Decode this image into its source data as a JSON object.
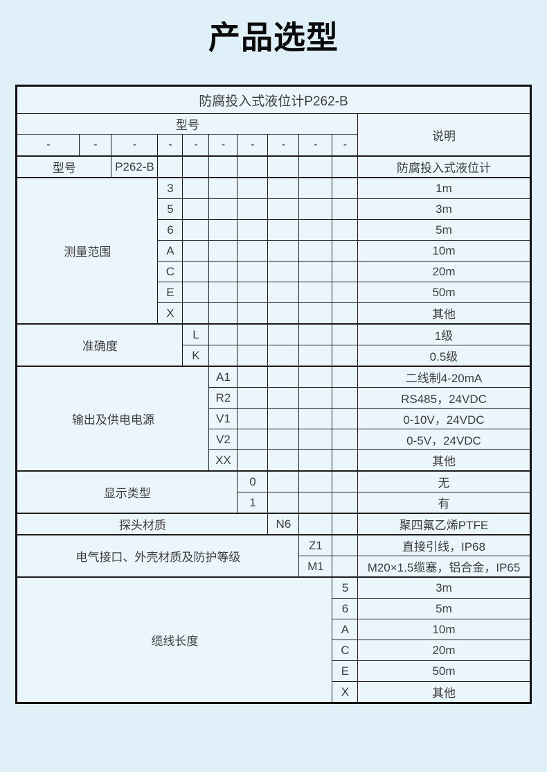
{
  "page": {
    "title": "产品选型"
  },
  "colors": {
    "page_bg": "#dff0f9",
    "cell_bg": "#ebf6fc",
    "category_blue": "#1e6cb5",
    "blue_text": "#edf3f9",
    "cell_text": "#3d3d3d",
    "border": "#1d1d1d",
    "title_text": "#0a0a0a"
  },
  "table": {
    "header_title": "防腐投入式液位计P262-B",
    "model_header": "型号",
    "desc_header": "说明",
    "dash": "-",
    "sections": [
      {
        "label": "型号",
        "label_span": 2,
        "rows": [
          {
            "code": "P262-B",
            "desc": "防腐投入式液位计"
          }
        ]
      },
      {
        "label": "测量范围",
        "label_span": 3,
        "rows": [
          {
            "code": "3",
            "desc": "1m"
          },
          {
            "code": "5",
            "desc": "3m"
          },
          {
            "code": "6",
            "desc": "5m"
          },
          {
            "code": "A",
            "desc": "10m"
          },
          {
            "code": "C",
            "desc": "20m"
          },
          {
            "code": "E",
            "desc": "50m"
          },
          {
            "code": "X",
            "desc": "其他"
          }
        ]
      },
      {
        "label": "准确度",
        "label_span": 4,
        "rows": [
          {
            "code": "L",
            "desc": "1级"
          },
          {
            "code": "K",
            "desc": "0.5级"
          }
        ]
      },
      {
        "label": "输出及供电电源",
        "label_span": 5,
        "rows": [
          {
            "code": "A1",
            "desc": "二线制4-20mA"
          },
          {
            "code": "R2",
            "desc": "RS485，24VDC"
          },
          {
            "code": "V1",
            "desc": "0-10V，24VDC"
          },
          {
            "code": "V2",
            "desc": "0-5V，24VDC"
          },
          {
            "code": "XX",
            "desc": "其他"
          }
        ]
      },
      {
        "label": "显示类型",
        "label_span": 6,
        "rows": [
          {
            "code": "0",
            "desc": "无"
          },
          {
            "code": "1",
            "desc": "有"
          }
        ]
      },
      {
        "label": "探头材质",
        "label_span": 7,
        "rows": [
          {
            "code": "N6",
            "desc": "聚四氟乙烯PTFE"
          }
        ]
      },
      {
        "label": "电气接口、外壳材质及防护等级",
        "label_span": 8,
        "rows": [
          {
            "code": "Z1",
            "desc": "直接引线，IP68"
          },
          {
            "code": "M1",
            "desc": "M20×1.5缆塞，铝合金，IP65"
          }
        ]
      },
      {
        "label": "缆线长度",
        "label_span": 9,
        "rows": [
          {
            "code": "5",
            "desc": "3m"
          },
          {
            "code": "6",
            "desc": "5m"
          },
          {
            "code": "A",
            "desc": "10m"
          },
          {
            "code": "C",
            "desc": "20m"
          },
          {
            "code": "E",
            "desc": "50m"
          },
          {
            "code": "X",
            "desc": "其他"
          }
        ]
      }
    ]
  }
}
